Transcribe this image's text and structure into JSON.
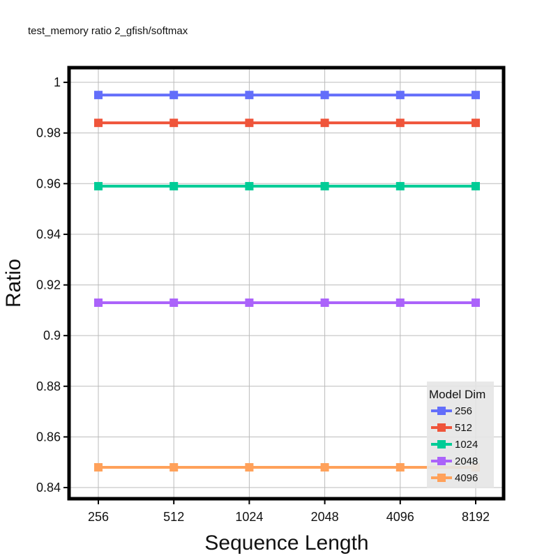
{
  "chart_data": {
    "type": "line",
    "title": "test_memory ratio 2_gfish/softmax",
    "xlabel": "Sequence Length",
    "ylabel": "Ratio",
    "categories": [
      "256",
      "512",
      "1024",
      "2048",
      "4096",
      "8192"
    ],
    "yticks": [
      "0.84",
      "0.86",
      "0.88",
      "0.9",
      "0.92",
      "0.94",
      "0.96",
      "0.98",
      "1"
    ],
    "ylim": [
      0.8356,
      1.0058
    ],
    "grid": true,
    "legend": {
      "title": "Model Dim",
      "placement": "bottom-right"
    },
    "series": [
      {
        "name": "256",
        "color": "#636EFA",
        "values": [
          0.995,
          0.995,
          0.995,
          0.995,
          0.995,
          0.995
        ]
      },
      {
        "name": "512",
        "color": "#EF553B",
        "values": [
          0.984,
          0.984,
          0.984,
          0.984,
          0.984,
          0.984
        ]
      },
      {
        "name": "1024",
        "color": "#00CC96",
        "values": [
          0.959,
          0.959,
          0.959,
          0.959,
          0.959,
          0.959
        ]
      },
      {
        "name": "2048",
        "color": "#AB63FA",
        "values": [
          0.913,
          0.913,
          0.913,
          0.913,
          0.913,
          0.913
        ]
      },
      {
        "name": "4096",
        "color": "#FFA15A",
        "values": [
          0.848,
          0.848,
          0.848,
          0.848,
          0.848,
          0.848
        ]
      }
    ]
  }
}
